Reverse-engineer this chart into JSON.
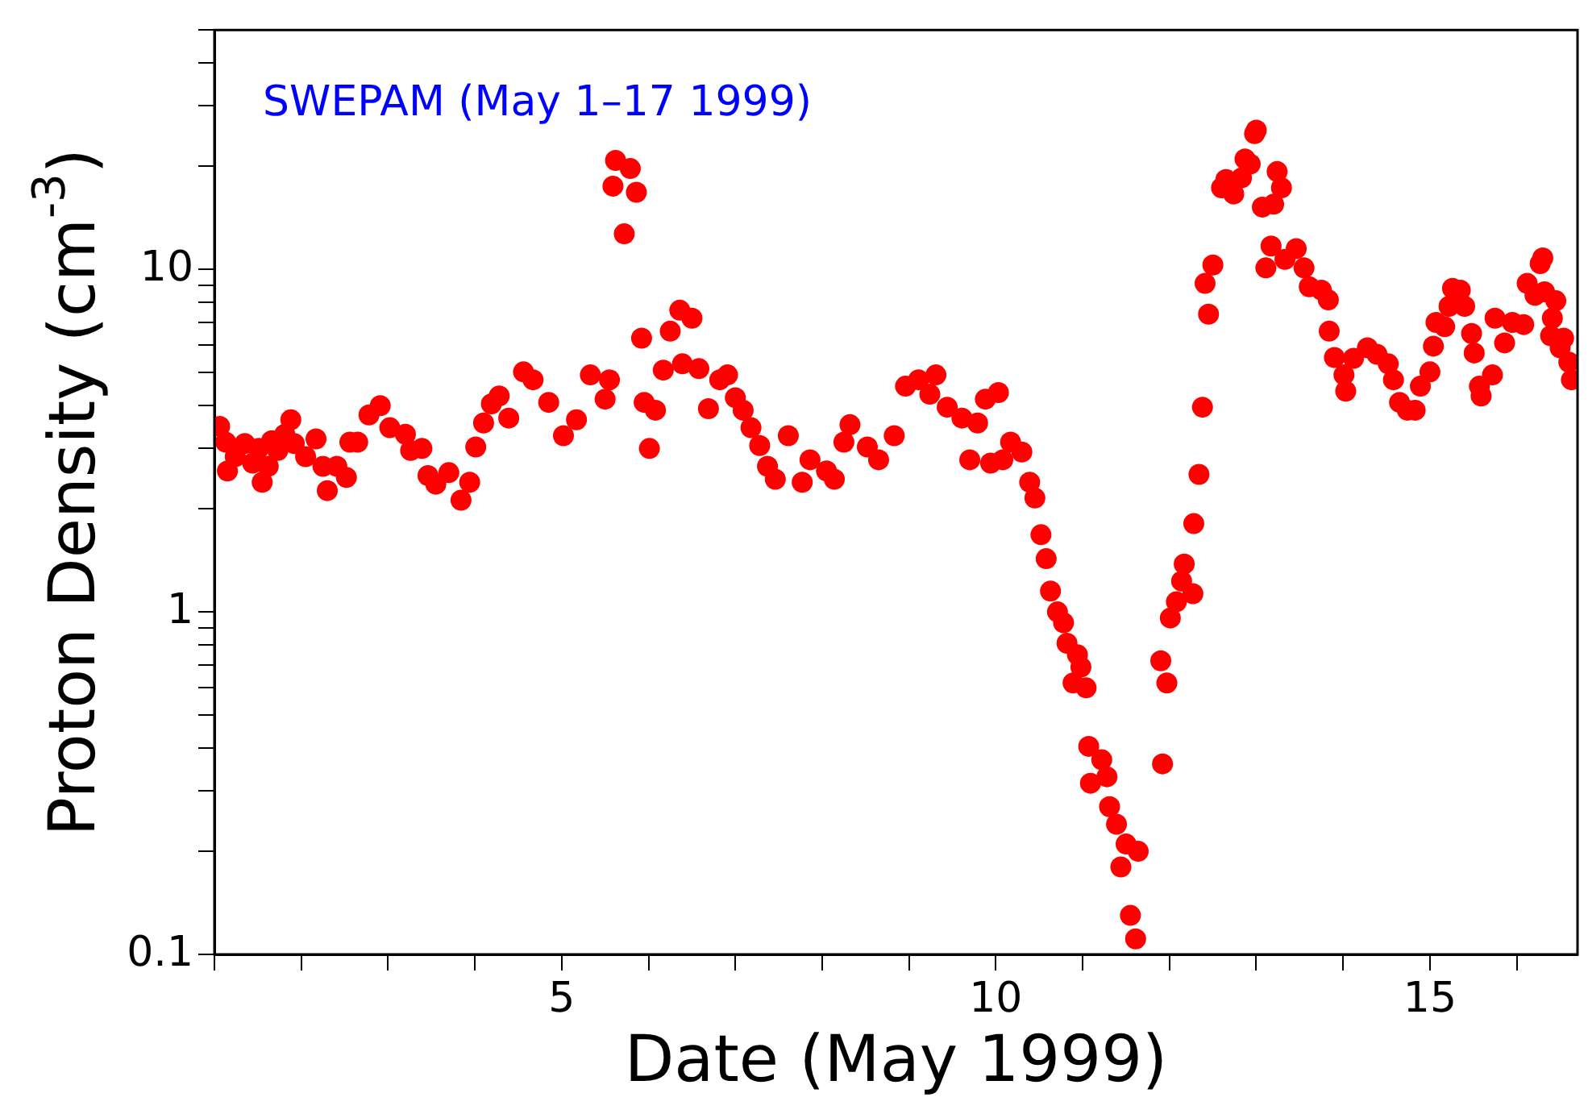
{
  "chart_data": {
    "type": "scatter",
    "xlabel": "Date (May 1999)",
    "ylabel": "Proton Density (cm$^{-3}$)",
    "annotations": [
      "SWEPAM (May 1–17 1999)"
    ],
    "log": "y",
    "grid": false,
    "legend": false,
    "marker": "circle",
    "xlim": [
      1,
      16.7
    ],
    "xticks": [
      {
        "value": 1,
        "label": null
      },
      {
        "value": 2,
        "label": null
      },
      {
        "value": 3,
        "label": null
      },
      {
        "value": 4,
        "label": null
      },
      5,
      {
        "value": 6,
        "label": null
      },
      {
        "value": 7,
        "label": null
      },
      {
        "value": 8,
        "label": null
      },
      {
        "value": 9,
        "label": null
      },
      10,
      {
        "value": 11,
        "label": null
      },
      {
        "value": 12,
        "label": null
      },
      {
        "value": 13,
        "label": null
      },
      {
        "value": 14,
        "label": null
      },
      15,
      {
        "value": 16,
        "label": null
      }
    ],
    "ylim": [
      0.1,
      50
    ],
    "yticks": [
      0.1,
      {
        "value": 0.2,
        "label": null
      },
      {
        "value": 0.3,
        "label": null
      },
      {
        "value": 0.4,
        "label": null
      },
      {
        "value": 0.5,
        "label": null
      },
      {
        "value": 0.6,
        "label": null
      },
      {
        "value": 0.7,
        "label": null
      },
      {
        "value": 0.8,
        "label": null
      },
      {
        "value": 0.9,
        "label": null
      },
      1,
      {
        "value": 2,
        "label": null
      },
      {
        "value": 3,
        "label": null
      },
      {
        "value": 4,
        "label": null
      },
      {
        "value": 5,
        "label": null
      },
      {
        "value": 6,
        "label": null
      },
      {
        "value": 7,
        "label": null
      },
      {
        "value": 8,
        "label": null
      },
      {
        "value": 9,
        "label": null
      },
      10,
      {
        "value": 20,
        "label": null
      },
      {
        "value": 30,
        "label": null
      },
      {
        "value": 40,
        "label": null
      },
      {
        "value": 50,
        "label": null
      }
    ],
    "x": [
      1.06,
      1.13,
      1.15,
      1.24,
      1.35,
      1.44,
      1.51,
      1.55,
      1.62,
      1.66,
      1.73,
      1.81,
      1.88,
      1.92,
      2.05,
      2.17,
      2.25,
      2.3,
      2.41,
      2.52,
      2.56,
      2.65,
      2.78,
      2.91,
      3.02,
      3.2,
      3.26,
      3.39,
      3.46,
      3.55,
      3.7,
      3.84,
      3.94,
      4.01,
      4.1,
      4.19,
      4.28,
      4.39,
      4.56,
      4.67,
      4.85,
      5.02,
      5.17,
      5.33,
      5.5,
      5.55,
      5.59,
      5.62,
      5.72,
      5.79,
      5.86,
      5.92,
      5.95,
      6.01,
      6.08,
      6.17,
      6.25,
      6.36,
      6.39,
      6.5,
      6.58,
      6.69,
      6.82,
      6.91,
      7.0,
      7.09,
      7.18,
      7.28,
      7.37,
      7.46,
      7.61,
      7.77,
      7.86,
      8.05,
      8.14,
      8.25,
      8.32,
      8.52,
      8.65,
      8.83,
      8.96,
      9.11,
      9.24,
      9.31,
      9.44,
      9.61,
      9.7,
      9.79,
      9.88,
      9.94,
      10.03,
      10.08,
      10.17,
      10.3,
      10.39,
      10.45,
      10.52,
      10.58,
      10.63,
      10.71,
      10.78,
      10.82,
      10.89,
      10.94,
      10.98,
      11.04,
      11.07,
      11.09,
      11.22,
      11.28,
      11.31,
      11.39,
      11.44,
      11.5,
      11.55,
      11.61,
      11.64,
      11.9,
      11.92,
      11.97,
      12.01,
      12.08,
      12.14,
      12.17,
      12.27,
      12.28,
      12.34,
      12.38,
      12.41,
      12.45,
      12.5,
      12.6,
      12.65,
      12.74,
      12.83,
      12.87,
      12.93,
      12.98,
      13.0,
      13.07,
      13.11,
      13.17,
      13.2,
      13.24,
      13.29,
      13.33,
      13.46,
      13.55,
      13.61,
      13.75,
      13.83,
      13.84,
      13.9,
      14.01,
      14.03,
      14.12,
      14.28,
      14.39,
      14.52,
      14.58,
      14.65,
      14.74,
      14.83,
      14.89,
      15.0,
      15.04,
      15.07,
      15.17,
      15.22,
      15.26,
      15.35,
      15.4,
      15.48,
      15.51,
      15.57,
      15.59,
      15.72,
      15.75,
      15.86,
      15.95,
      16.08,
      16.12,
      16.21,
      16.27,
      16.3,
      16.32,
      16.39,
      16.41,
      16.45,
      16.5,
      16.54,
      16.6,
      16.63
    ],
    "series": [
      {
        "color": "#ff0000",
        "values": [
          3.48,
          3.13,
          2.58,
          2.84,
          3.1,
          2.72,
          3.0,
          2.39,
          2.66,
          3.16,
          2.96,
          3.3,
          3.64,
          3.1,
          2.84,
          3.2,
          2.66,
          2.26,
          2.66,
          2.47,
          3.13,
          3.13,
          3.76,
          4.0,
          3.45,
          3.3,
          2.96,
          3.0,
          2.5,
          2.36,
          2.55,
          2.12,
          2.39,
          3.03,
          3.56,
          4.05,
          4.27,
          3.68,
          5.02,
          4.76,
          4.09,
          3.27,
          3.64,
          4.92,
          4.18,
          4.76,
          17.5,
          20.8,
          12.7,
          19.7,
          16.8,
          6.3,
          4.09,
          3.0,
          3.88,
          5.08,
          6.6,
          7.6,
          5.3,
          7.2,
          5.13,
          3.92,
          4.76,
          4.92,
          4.22,
          3.88,
          3.45,
          3.06,
          2.66,
          2.44,
          3.27,
          2.39,
          2.78,
          2.58,
          2.44,
          3.13,
          3.52,
          3.03,
          2.78,
          3.27,
          4.56,
          4.76,
          4.32,
          4.92,
          3.96,
          3.68,
          2.78,
          3.56,
          4.18,
          2.72,
          4.37,
          2.78,
          3.13,
          2.93,
          2.39,
          2.15,
          1.68,
          1.43,
          1.15,
          1.0,
          0.93,
          0.81,
          0.62,
          0.75,
          0.69,
          0.6,
          0.405,
          0.316,
          0.37,
          0.33,
          0.27,
          0.24,
          0.18,
          0.21,
          0.13,
          0.111,
          0.2,
          0.72,
          0.36,
          0.62,
          0.96,
          1.07,
          1.23,
          1.38,
          1.13,
          1.81,
          2.52,
          3.96,
          9.1,
          7.4,
          10.3,
          17.3,
          18.3,
          16.6,
          18.5,
          21.0,
          20.3,
          24.9,
          25.5,
          15.2,
          10.1,
          11.7,
          15.5,
          19.3,
          17.3,
          10.7,
          11.5,
          10.1,
          8.9,
          8.7,
          8.15,
          6.6,
          5.53,
          4.92,
          4.41,
          5.5,
          5.9,
          5.65,
          5.3,
          4.76,
          4.09,
          3.88,
          3.88,
          4.56,
          5.02,
          5.97,
          7.0,
          6.8,
          7.8,
          8.8,
          8.7,
          7.8,
          6.5,
          5.7,
          4.56,
          4.27,
          4.92,
          7.2,
          6.1,
          7.0,
          6.9,
          9.1,
          8.4,
          10.4,
          10.8,
          8.6,
          6.4,
          7.2,
          8.1,
          5.9,
          6.3,
          5.36,
          4.76
        ]
      }
    ]
  }
}
